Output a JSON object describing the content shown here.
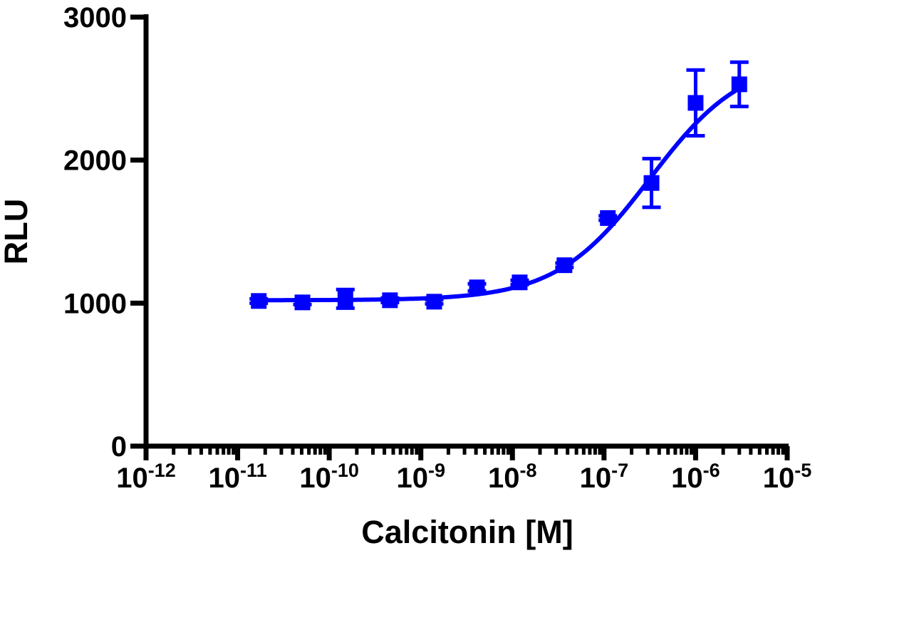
{
  "chart_data": {
    "type": "scatter",
    "title": "",
    "xlabel": "Calcitonin [M]",
    "ylabel": "RLU",
    "x_scale": "log10",
    "xlim_exponents": [
      -12,
      -5
    ],
    "ylim": [
      0,
      3000
    ],
    "grid": false,
    "legend": "none",
    "colors": {
      "series": "#0000ff",
      "axis": "#000000"
    },
    "y_ticks": [
      {
        "value": 0,
        "label": "0"
      },
      {
        "value": 1000,
        "label": "1000"
      },
      {
        "value": 2000,
        "label": "2000"
      },
      {
        "value": 3000,
        "label": "3000"
      }
    ],
    "x_ticks": [
      {
        "exponent": -12,
        "base": "10",
        "sup": "-12"
      },
      {
        "exponent": -11,
        "base": "10",
        "sup": "-11"
      },
      {
        "exponent": -10,
        "base": "10",
        "sup": "-10"
      },
      {
        "exponent": -9,
        "base": "10",
        "sup": "-9"
      },
      {
        "exponent": -8,
        "base": "10",
        "sup": "-8"
      },
      {
        "exponent": -7,
        "base": "10",
        "sup": "-7"
      },
      {
        "exponent": -6,
        "base": "10",
        "sup": "-6"
      },
      {
        "exponent": -5,
        "base": "10",
        "sup": "-5"
      }
    ],
    "series": [
      {
        "name": "Calcitonin",
        "points": [
          {
            "x": 1.7e-11,
            "y": 1015,
            "err": 15
          },
          {
            "x": 5.1e-11,
            "y": 1005,
            "err": 15
          },
          {
            "x": 1.5e-10,
            "y": 1030,
            "err": 65
          },
          {
            "x": 4.6e-10,
            "y": 1020,
            "err": 15
          },
          {
            "x": 1.4e-09,
            "y": 1010,
            "err": 15
          },
          {
            "x": 4.1e-09,
            "y": 1110,
            "err": 25
          },
          {
            "x": 1.2e-08,
            "y": 1145,
            "err": 15
          },
          {
            "x": 3.7e-08,
            "y": 1265,
            "err": 15
          },
          {
            "x": 1.1e-07,
            "y": 1595,
            "err": 15
          },
          {
            "x": 3.3e-07,
            "y": 1840,
            "err": 170
          },
          {
            "x": 1e-06,
            "y": 2400,
            "err": 230
          },
          {
            "x": 3e-06,
            "y": 2530,
            "err": 155
          }
        ],
        "fit": {
          "model": "sigmoidal dose-response",
          "bottom": 1020,
          "top": 2720,
          "log_ec50": -6.5,
          "hill_slope": 0.85
        }
      }
    ]
  }
}
